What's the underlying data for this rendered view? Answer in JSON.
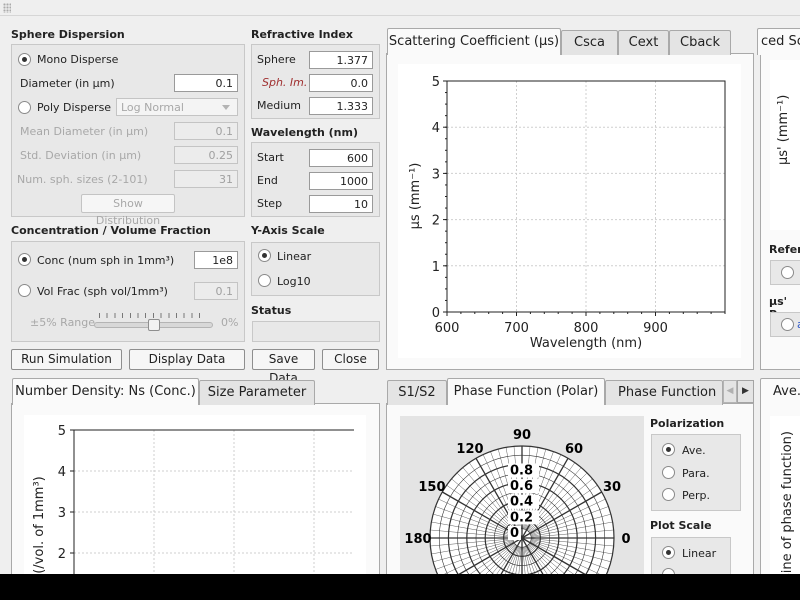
{
  "sphere_dispersion": {
    "title": "Sphere Dispersion",
    "mono_label": "Mono Disperse",
    "mono_selected": true,
    "diameter_label": "Diameter (in μm)",
    "diameter_value": "0.1",
    "poly_label": "Poly Disperse",
    "poly_selected": false,
    "distribution_option": "Log Normal",
    "mean_diameter_label": "Mean Diameter (in μm)",
    "mean_diameter_value": "0.1",
    "std_dev_label": "Std. Deviation (in μm)",
    "std_dev_value": "0.25",
    "num_sizes_label": "Num. sph. sizes (2-101)",
    "num_sizes_value": "31",
    "show_distribution_label": "Show Distribution"
  },
  "refractive_index": {
    "title": "Refractive Index",
    "sphere_label": "Sphere",
    "sphere_value": "1.377",
    "sph_im_label": "Sph. Im.",
    "sph_im_value": "0.0",
    "medium_label": "Medium",
    "medium_value": "1.333"
  },
  "wavelength": {
    "title": "Wavelength (nm)",
    "start_label": "Start",
    "start_value": "600",
    "end_label": "End",
    "end_value": "1000",
    "step_label": "Step",
    "step_value": "10"
  },
  "concentration": {
    "title": "Concentration / Volume Fraction",
    "conc_label": "Conc (num sph in 1mm³)",
    "conc_value": "1e8",
    "conc_selected": true,
    "volfrac_label": "Vol Frac (sph vol/1mm³)",
    "volfrac_value": "0.1",
    "volfrac_selected": false,
    "range_label": "±5% Range",
    "range_value_label": "0%",
    "slider_fraction": 0.5
  },
  "y_axis_scale": {
    "title": "Y-Axis Scale",
    "linear_label": "Linear",
    "linear_selected": true,
    "log_label": "Log10",
    "log_selected": false
  },
  "status": {
    "title": "Status",
    "text": ""
  },
  "buttons": {
    "run": "Run Simulation",
    "display": "Display Data",
    "save": "Save Data",
    "close": "Close"
  },
  "top_tabs": {
    "items": [
      "Scattering Coefficient (μs)",
      "Csca",
      "Cext",
      "Cback"
    ],
    "selected": 0
  },
  "right_top_partial": {
    "tab_label": "ced Sc",
    "axis_label": "μs' (mm⁻¹)",
    "reference_label": "Refere",
    "mus_label": "μs' Po",
    "mus_value_partial": "a"
  },
  "bottom_left_tabs": {
    "items": [
      "Number Density: Ns (Conc.)",
      "Size Parameter"
    ],
    "selected": 0
  },
  "bottom_mid_tabs": {
    "items": [
      "S1/S2",
      "Phase Function (Polar)",
      "Phase Function (L"
    ],
    "selected": 1
  },
  "bottom_right_partial": {
    "tab_label": "Ave.",
    "axis_label": "sine of phase function)"
  },
  "polarization": {
    "title": "Polarization",
    "options": [
      "Ave.",
      "Para.",
      "Perp."
    ],
    "selected": 0
  },
  "plot_scale": {
    "title": "Plot Scale",
    "options": [
      "Linear"
    ],
    "selected": 0
  },
  "icons": {
    "tab_left": "chevron-left-icon",
    "tab_right": "chevron-right-icon"
  },
  "chart_data": [
    {
      "type": "line",
      "title": "",
      "xlabel": "Wavelength (nm)",
      "ylabel": "μs (mm⁻¹)",
      "xlim": [
        600,
        1000
      ],
      "ylim": [
        0,
        5
      ],
      "xticks": [
        600,
        700,
        800,
        900
      ],
      "yticks": [
        0,
        1,
        2,
        3,
        4,
        5
      ],
      "grid": true,
      "series": []
    },
    {
      "type": "line",
      "title": "",
      "xlabel": "",
      "ylabel": "(/vol. of 1mm³)",
      "ylim": [
        0,
        5
      ],
      "yticks": [
        2,
        3,
        4,
        5
      ],
      "grid": true,
      "series": []
    },
    {
      "type": "scatter",
      "title": "",
      "polar": true,
      "angle_ticks": [
        0,
        30,
        60,
        90,
        120,
        150,
        180
      ],
      "radial_ticks": [
        0,
        0.2,
        0.4,
        0.6,
        0.8
      ],
      "rlim": [
        0,
        1
      ],
      "grid": true,
      "series": []
    }
  ]
}
